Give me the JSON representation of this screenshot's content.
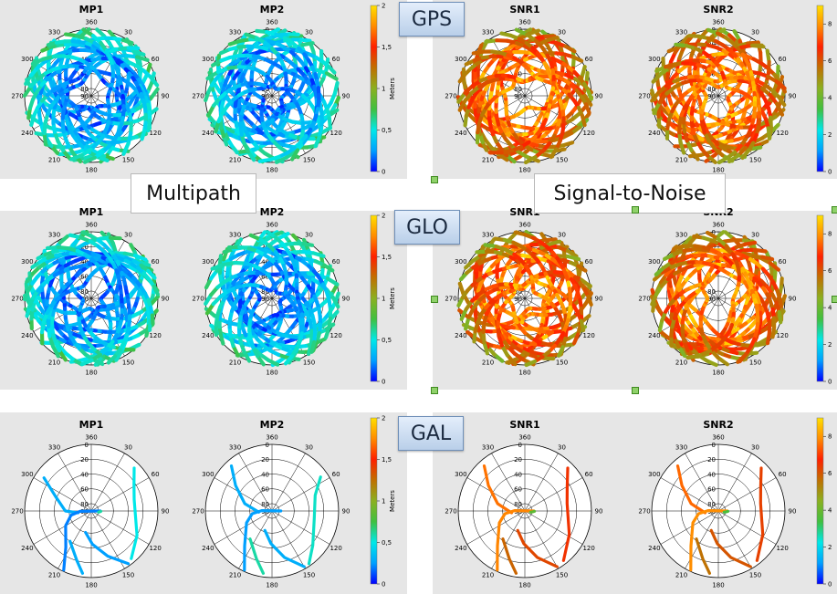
{
  "rows": [
    {
      "constellation": "GPS",
      "density": "dense"
    },
    {
      "constellation": "GLO",
      "density": "dense"
    },
    {
      "constellation": "GAL",
      "density": "sparse"
    }
  ],
  "section_labels": {
    "multipath": "Multipath",
    "snr": "Signal-to-Noise"
  },
  "colors": {
    "band": "#e6e6e6",
    "colormap": [
      "#0000ff",
      "#00a0ff",
      "#00e8e8",
      "#40c040",
      "#8bb020",
      "#c07000",
      "#ff2000",
      "#ff8c00",
      "#ffe000"
    ]
  },
  "chart_data": [
    {
      "type": "polar-skyplot",
      "constellation": "GPS",
      "title": "MP1",
      "metric": "multipath",
      "radial_ticks": [
        "90",
        "80",
        "60",
        "40",
        "20",
        "0"
      ],
      "azimuth_labels": [
        "360",
        "30",
        "60",
        "90",
        "120",
        "150",
        "180",
        "210",
        "240",
        "270",
        "300",
        "330"
      ],
      "colorbar": {
        "label": "Meters",
        "ticks": [
          "0",
          "0,5",
          "1",
          "1,5",
          "2"
        ],
        "range": [
          0,
          2
        ]
      },
      "traces": []
    },
    {
      "type": "polar-skyplot",
      "constellation": "GPS",
      "title": "MP2",
      "metric": "multipath",
      "radial_ticks": [
        "90",
        "80",
        "60",
        "40",
        "20",
        "0"
      ],
      "azimuth_labels": [
        "360",
        "30",
        "60",
        "90",
        "120",
        "150",
        "180",
        "210",
        "240",
        "270",
        "300",
        "330"
      ],
      "colorbar": {
        "label": "Meters",
        "ticks": [
          "0",
          "0,5",
          "1",
          "1,5",
          "2"
        ],
        "range": [
          0,
          2
        ]
      },
      "traces": []
    },
    {
      "type": "polar-skyplot",
      "constellation": "GPS",
      "title": "SNR1",
      "metric": "snr",
      "radial_ticks": [
        "90",
        "80",
        "60",
        "40",
        "20",
        "0"
      ],
      "azimuth_labels": [
        "360",
        "30",
        "60",
        "90",
        "120",
        "150",
        "180",
        "210",
        "240",
        "270",
        "300",
        "330"
      ],
      "colorbar": {
        "label": "",
        "ticks": [
          "0",
          "2",
          "4",
          "6",
          "8"
        ],
        "range": [
          0,
          9
        ]
      },
      "traces": []
    },
    {
      "type": "polar-skyplot",
      "constellation": "GPS",
      "title": "SNR2",
      "metric": "snr",
      "radial_ticks": [
        "90",
        "80",
        "60",
        "40",
        "20",
        "0"
      ],
      "azimuth_labels": [
        "360",
        "30",
        "60",
        "90",
        "120",
        "150",
        "180",
        "210",
        "240",
        "270",
        "300",
        "330"
      ],
      "colorbar": {
        "label": "",
        "ticks": [
          "0",
          "2",
          "4",
          "6",
          "8"
        ],
        "range": [
          0,
          9
        ]
      },
      "traces": []
    },
    {
      "type": "polar-skyplot",
      "constellation": "GLO",
      "title": "MP1",
      "metric": "multipath",
      "radial_ticks": [
        "90",
        "80",
        "60",
        "40",
        "20",
        "0"
      ],
      "azimuth_labels": [
        "360",
        "30",
        "60",
        "90",
        "120",
        "150",
        "180",
        "210",
        "240",
        "270",
        "300",
        "330"
      ],
      "colorbar": {
        "label": "Meters",
        "ticks": [
          "0",
          "0,5",
          "1",
          "1,5",
          "2"
        ],
        "range": [
          0,
          2
        ]
      },
      "traces": []
    },
    {
      "type": "polar-skyplot",
      "constellation": "GLO",
      "title": "MP2",
      "metric": "multipath",
      "radial_ticks": [
        "90",
        "80",
        "60",
        "40",
        "20",
        "0"
      ],
      "azimuth_labels": [
        "360",
        "30",
        "60",
        "90",
        "120",
        "150",
        "180",
        "210",
        "240",
        "270",
        "300",
        "330"
      ],
      "colorbar": {
        "label": "Meters",
        "ticks": [
          "0",
          "0,5",
          "1",
          "1,5",
          "2"
        ],
        "range": [
          0,
          2
        ]
      },
      "traces": []
    },
    {
      "type": "polar-skyplot",
      "constellation": "GLO",
      "title": "SNR1",
      "metric": "snr",
      "radial_ticks": [
        "90",
        "80",
        "60",
        "40",
        "20",
        "0"
      ],
      "azimuth_labels": [
        "360",
        "30",
        "60",
        "90",
        "120",
        "150",
        "180",
        "210",
        "240",
        "270",
        "300",
        "330"
      ],
      "colorbar": {
        "label": "",
        "ticks": [
          "0",
          "2",
          "4",
          "6",
          "8"
        ],
        "range": [
          0,
          9
        ]
      },
      "traces": []
    },
    {
      "type": "polar-skyplot",
      "constellation": "GLO",
      "title": "SNR2",
      "metric": "snr",
      "radial_ticks": [
        "90",
        "80",
        "60",
        "40",
        "20",
        "0"
      ],
      "azimuth_labels": [
        "360",
        "30",
        "60",
        "90",
        "120",
        "150",
        "180",
        "210",
        "240",
        "270",
        "300",
        "330"
      ],
      "colorbar": {
        "label": "",
        "ticks": [
          "0",
          "2",
          "4",
          "6",
          "8"
        ],
        "range": [
          0,
          9
        ]
      },
      "traces": []
    },
    {
      "type": "polar-skyplot",
      "constellation": "GAL",
      "title": "MP1",
      "metric": "multipath",
      "radial_ticks": [
        "90",
        "80",
        "60",
        "40",
        "20",
        "0"
      ],
      "azimuth_labels": [
        "360",
        "30",
        "60",
        "90",
        "120",
        "150",
        "180",
        "210",
        "240",
        "270",
        "300",
        "330"
      ],
      "colorbar": {
        "label": "Meters",
        "ticks": [
          "0",
          "0,5",
          "1",
          "1,5",
          "2"
        ],
        "range": [
          0,
          2
        ]
      },
      "traces": [
        {
          "azimuth": [
            305,
            292,
            270,
            262
          ],
          "elevation": [
            12,
            38,
            55,
            72
          ],
          "value": 0.3
        },
        {
          "azimuth": [
            45,
            58,
            75,
            118,
            140
          ],
          "elevation": [
            8,
            22,
            30,
            20,
            6
          ],
          "value": 0.5
        },
        {
          "azimuth": [
            205,
            215,
            240,
            258,
            268,
            90
          ],
          "elevation": [
            2,
            30,
            50,
            62,
            75,
            78
          ],
          "value": 0.2
        },
        {
          "azimuth": [
            188,
            196,
            215
          ],
          "elevation": [
            5,
            20,
            40
          ],
          "value": 0.3
        },
        {
          "azimuth": [
            145,
            160,
            178,
            195
          ],
          "elevation": [
            3,
            25,
            45,
            60
          ],
          "value": 0.25
        },
        {
          "azimuth": [
            92,
            95,
            100
          ],
          "elevation": [
            77,
            78,
            80
          ],
          "value": 0.6
        }
      ]
    },
    {
      "type": "polar-skyplot",
      "constellation": "GAL",
      "title": "MP2",
      "metric": "multipath",
      "radial_ticks": [
        "90",
        "80",
        "60",
        "40",
        "20",
        "0"
      ],
      "azimuth_labels": [
        "360",
        "30",
        "60",
        "90",
        "120",
        "150",
        "180",
        "210",
        "240",
        "270",
        "300",
        "330"
      ],
      "colorbar": {
        "label": "Meters",
        "ticks": [
          "0",
          "0,5",
          "1",
          "1,5",
          "2"
        ],
        "range": [
          0,
          2
        ]
      },
      "traces": [
        {
          "azimuth": [
            318,
            305,
            285,
            265
          ],
          "elevation": [
            8,
            30,
            52,
            72
          ],
          "value": 0.3
        },
        {
          "azimuth": [
            55,
            70,
            100,
            130,
            145
          ],
          "elevation": [
            10,
            28,
            32,
            18,
            3
          ],
          "value": 0.55
        },
        {
          "azimuth": [
            205,
            218,
            245,
            262,
            272,
            90
          ],
          "elevation": [
            2,
            30,
            52,
            63,
            76,
            78
          ],
          "value": 0.25
        },
        {
          "azimuth": [
            188,
            198,
            218
          ],
          "elevation": [
            5,
            22,
            42
          ],
          "value": 0.6
        },
        {
          "azimuth": [
            150,
            165,
            182,
            200
          ],
          "elevation": [
            3,
            25,
            46,
            62
          ],
          "value": 0.3
        }
      ]
    },
    {
      "type": "polar-skyplot",
      "constellation": "GAL",
      "title": "SNR1",
      "metric": "snr",
      "radial_ticks": [
        "90",
        "80",
        "60",
        "40",
        "20",
        "0"
      ],
      "azimuth_labels": [
        "360",
        "30",
        "60",
        "90",
        "120",
        "150",
        "180",
        "210",
        "240",
        "270",
        "300",
        "330"
      ],
      "colorbar": {
        "label": "",
        "ticks": [
          "0",
          "2",
          "4",
          "6",
          "8"
        ],
        "range": [
          0,
          9
        ]
      },
      "traces": [
        {
          "azimuth": [
            318,
            305,
            285,
            262
          ],
          "elevation": [
            8,
            30,
            52,
            72
          ],
          "value": 7.6
        },
        {
          "azimuth": [
            45,
            60,
            80,
            118,
            142
          ],
          "elevation": [
            8,
            24,
            32,
            22,
            5
          ],
          "value": 6.5
        },
        {
          "azimuth": [
            205,
            218,
            245,
            262,
            272,
            90
          ],
          "elevation": [
            2,
            30,
            52,
            63,
            76,
            78
          ],
          "value": 7.8
        },
        {
          "azimuth": [
            188,
            198,
            218
          ],
          "elevation": [
            5,
            22,
            42
          ],
          "value": 5.8
        },
        {
          "azimuth": [
            150,
            165,
            182,
            200
          ],
          "elevation": [
            3,
            25,
            46,
            62
          ],
          "value": 6.2
        },
        {
          "azimuth": [
            92,
            96,
            102
          ],
          "elevation": [
            77,
            79,
            82
          ],
          "value": 3.8
        }
      ]
    },
    {
      "type": "polar-skyplot",
      "constellation": "GAL",
      "title": "SNR2",
      "metric": "snr",
      "radial_ticks": [
        "90",
        "80",
        "60",
        "40",
        "20",
        "0"
      ],
      "azimuth_labels": [
        "360",
        "30",
        "60",
        "90",
        "120",
        "150",
        "180",
        "210",
        "240",
        "270",
        "300",
        "330"
      ],
      "colorbar": {
        "label": "",
        "ticks": [
          "0",
          "2",
          "4",
          "6",
          "8"
        ],
        "range": [
          0,
          9
        ]
      },
      "traces": [
        {
          "azimuth": [
            318,
            305,
            285,
            262
          ],
          "elevation": [
            8,
            30,
            52,
            72
          ],
          "value": 7.5
        },
        {
          "azimuth": [
            45,
            60,
            80,
            118,
            142
          ],
          "elevation": [
            8,
            24,
            32,
            22,
            5
          ],
          "value": 6.3
        },
        {
          "azimuth": [
            205,
            218,
            245,
            262,
            272,
            90
          ],
          "elevation": [
            2,
            30,
            52,
            63,
            76,
            78
          ],
          "value": 7.9
        },
        {
          "azimuth": [
            188,
            198,
            218
          ],
          "elevation": [
            5,
            22,
            42
          ],
          "value": 5.6
        },
        {
          "azimuth": [
            150,
            165,
            182,
            200
          ],
          "elevation": [
            3,
            25,
            46,
            62
          ],
          "value": 6.0
        },
        {
          "azimuth": [
            92,
            96,
            102
          ],
          "elevation": [
            77,
            79,
            82
          ],
          "value": 3.5
        }
      ]
    }
  ]
}
